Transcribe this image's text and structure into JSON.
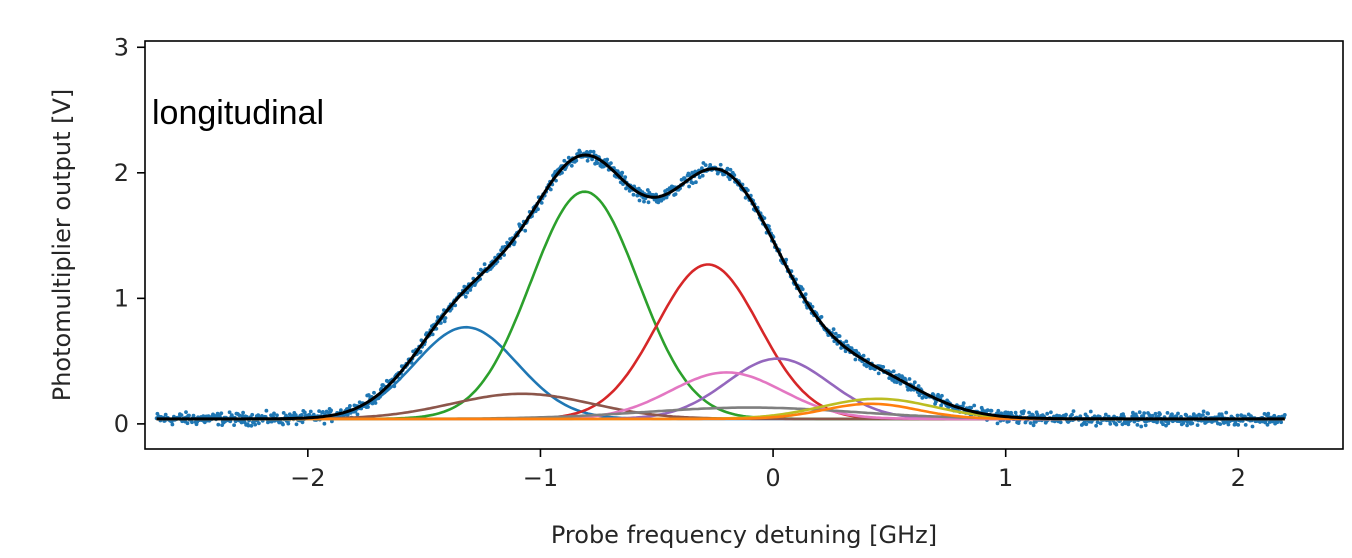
{
  "chart_data": {
    "type": "line",
    "title": "",
    "xlabel": "Probe frequency detuning [GHz]",
    "ylabel": "Photomultiplier output [V]",
    "annotation": "longitudinal",
    "xlim": [
      -2.7,
      2.45
    ],
    "ylim": [
      -0.2,
      3.05
    ],
    "x_ticks": [
      -2,
      -1,
      0,
      1,
      2
    ],
    "x_tick_labels": [
      "−2",
      "−1",
      "0",
      "1",
      "2"
    ],
    "y_ticks": [
      0,
      1,
      2,
      3
    ],
    "y_tick_labels": [
      "0",
      "1",
      "2",
      "3"
    ],
    "x_range": [
      -2.65,
      2.2
    ],
    "baseline": 0.04,
    "grid": false,
    "legend": "none",
    "data_series": {
      "name": "",
      "color": "#1f77b4",
      "marker": "dot",
      "noise": 0.03
    },
    "fit": {
      "color": "#000000"
    },
    "components": [
      {
        "color": "#1f77b4",
        "center": -1.32,
        "amplitude": 0.73,
        "width": 0.22
      },
      {
        "color": "#2ca02c",
        "center": -0.81,
        "amplitude": 1.81,
        "width": 0.23
      },
      {
        "color": "#d62728",
        "center": -0.28,
        "amplitude": 1.23,
        "width": 0.22
      },
      {
        "color": "#9467bd",
        "center": 0.02,
        "amplitude": 0.48,
        "width": 0.22
      },
      {
        "color": "#8c564b",
        "center": -1.08,
        "amplitude": 0.2,
        "width": 0.3
      },
      {
        "color": "#e377c2",
        "center": -0.2,
        "amplitude": 0.37,
        "width": 0.24
      },
      {
        "color": "#7f7f7f",
        "center": -0.1,
        "amplitude": 0.09,
        "width": 0.45
      },
      {
        "color": "#bcbd22",
        "center": 0.45,
        "amplitude": 0.16,
        "width": 0.24
      },
      {
        "color": "#ff7f0e",
        "center": 0.42,
        "amplitude": 0.12,
        "width": 0.2
      }
    ]
  }
}
